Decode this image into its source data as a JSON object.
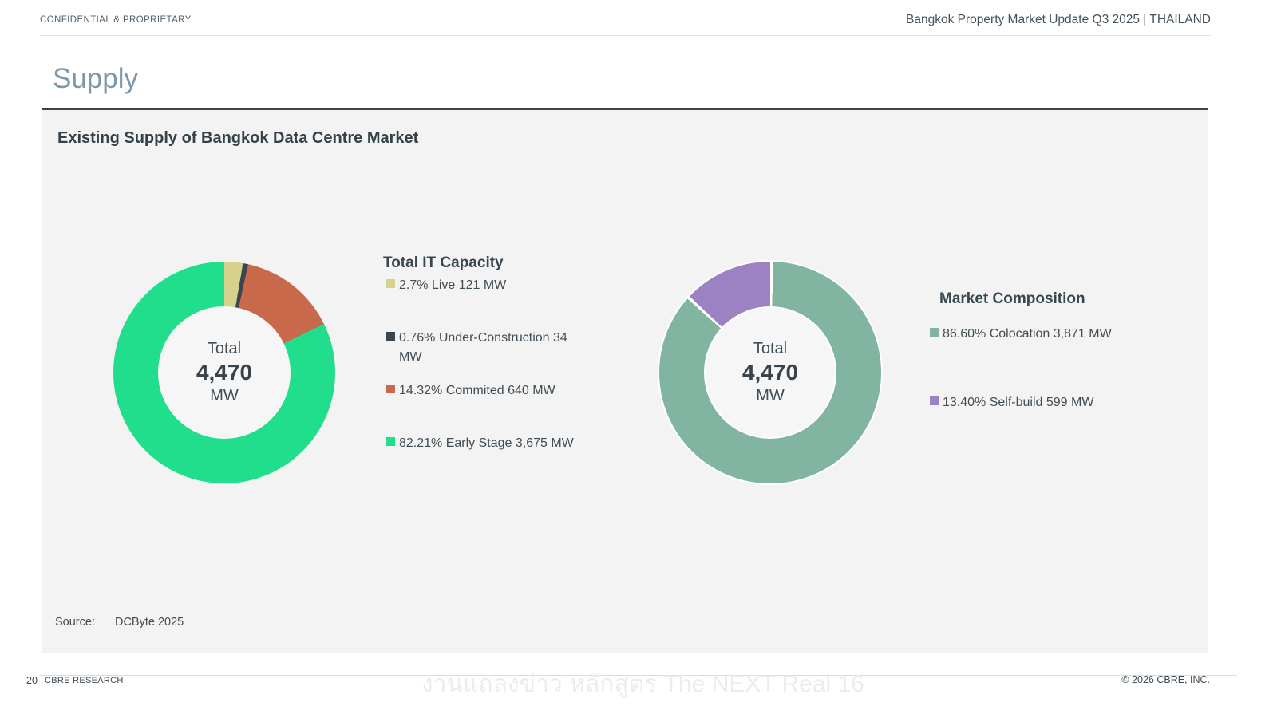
{
  "header": {
    "confidential_label": "CONFIDENTIAL & PROPRIETARY",
    "report_title": "Bangkok Property Market Update Q3 2025 |  THAILAND"
  },
  "slide": {
    "title": "Supply",
    "heading": "Existing Supply of Bangkok Data Centre Market",
    "source_label": "Source:",
    "source_value": "DCByte 2025"
  },
  "footer": {
    "page_number": "20",
    "brand": "CBRE RESEARCH",
    "copyright": "© 2026 CBRE, INC.",
    "watermark": "งานแถลงข่าว หลักสูตร The NEXT Real 16"
  },
  "colors": {
    "panel_bg": "#f3f3f3",
    "title_bluegray": "#7e98ab",
    "text_dark": "#37474f"
  },
  "chart_data": [
    {
      "type": "pie",
      "variant": "donut",
      "title": "Total IT Capacity",
      "unit": "MW",
      "total_mw": 4470,
      "center": {
        "label": "Total",
        "value": "4,470",
        "unit": "MW"
      },
      "start_angle_deg": 0,
      "direction": "clockwise",
      "legend_position": "right",
      "slice_gap_deg": 0,
      "slices": [
        {
          "name": "Live",
          "pct": 2.7,
          "value_mw": 121,
          "color": "#d6d28e",
          "legend_label": "2.7% Live 121 MW"
        },
        {
          "name": "Under-Construction",
          "pct": 0.76,
          "value_mw": 34,
          "color": "#3a464e",
          "legend_label": "0.76% Under-Construction 34 MW"
        },
        {
          "name": "Commited",
          "pct": 14.32,
          "value_mw": 640,
          "color": "#c9694c",
          "legend_label": "14.32% Commited 640 MW"
        },
        {
          "name": "Early Stage",
          "pct": 82.21,
          "value_mw": 3675,
          "color": "#21de8c",
          "legend_label": "82.21% Early Stage 3,675 MW"
        }
      ]
    },
    {
      "type": "pie",
      "variant": "donut",
      "title": "Market Composition",
      "unit": "MW",
      "total_mw": 4470,
      "center": {
        "label": "Total",
        "value": "4,470",
        "unit": "MW"
      },
      "start_angle_deg": 0,
      "direction": "clockwise",
      "legend_position": "right",
      "slice_gap_deg": 1.6,
      "slices": [
        {
          "name": "Colocation",
          "pct": 86.6,
          "value_mw": 3871,
          "color": "#81b5a1",
          "legend_label": "86.60% Colocation 3,871 MW"
        },
        {
          "name": "Self-build",
          "pct": 13.4,
          "value_mw": 599,
          "color": "#9c82c2",
          "legend_label": "13.40% Self-build 599 MW"
        }
      ]
    }
  ]
}
